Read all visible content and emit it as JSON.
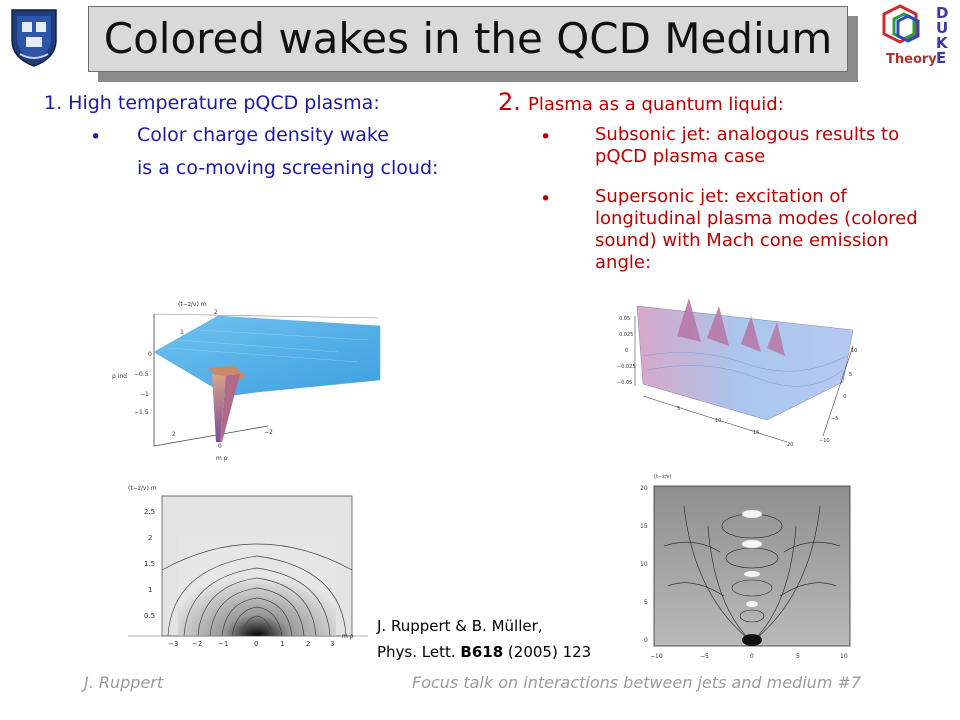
{
  "slide": {
    "title": "Colored wakes in the QCD Medium",
    "left": {
      "heading": "1. High temperature pQCD plasma:",
      "bullet_marker": "•",
      "bullet_line1": "Color charge density wake",
      "bullet_line2": "is a co-moving screening cloud:"
    },
    "right": {
      "number": "2.",
      "heading": "Plasma as a quantum liquid:",
      "bullet_marker": "•",
      "bullet1": "Subsonic jet: analogous results to pQCD plasma case",
      "bullet2": "Supersonic jet: excitation of longitudinal plasma modes (colored sound) with Mach cone emission angle:"
    },
    "citation": {
      "line1": "J. Ruppert & B. Müller,",
      "line2_prefix": "Phys. Lett. ",
      "line2_bold": "B618",
      "line2_suffix": " (2005) 123"
    },
    "footer": {
      "author": "J. Ruppert",
      "talk": "Focus talk on interactions between jets and medium  #7"
    },
    "logo_right": {
      "letters": [
        "D",
        "U",
        "K",
        "E"
      ],
      "word": "Theory"
    },
    "fig_tl": {
      "ylabel_top": "(t−z/v)  m",
      "ticks_z": [
        "2",
        "1",
        "0",
        "−0.5",
        "−1",
        "−1.5"
      ],
      "ticks_rho": [
        "2",
        "0",
        "−2"
      ],
      "ylabel_left": "ρ ind",
      "xlabel": "m  ρ"
    },
    "fig_bl": {
      "ylabel_top": "(t−z/v)  m",
      "yticks": [
        "2.5",
        "2",
        "1.5",
        "1",
        "0.5"
      ],
      "xticks": [
        "−3",
        "−2",
        "−1",
        "0",
        "1",
        "2",
        "3"
      ],
      "xlabel": "m  ρ"
    },
    "fig_tr": {
      "zticks": [
        "0.05",
        "0.025",
        "0",
        "−0.025",
        "−0.05"
      ],
      "yticks": [
        "10",
        "5",
        "0",
        "−5",
        "−10"
      ],
      "xticks": [
        "5",
        "10",
        "15",
        "20"
      ]
    },
    "fig_br": {
      "ylabel_top": "(t−z/v)",
      "yticks": [
        "20",
        "15",
        "10",
        "5",
        "0"
      ],
      "xticks": [
        "−10",
        "−5",
        "0",
        "5",
        "10"
      ]
    }
  }
}
